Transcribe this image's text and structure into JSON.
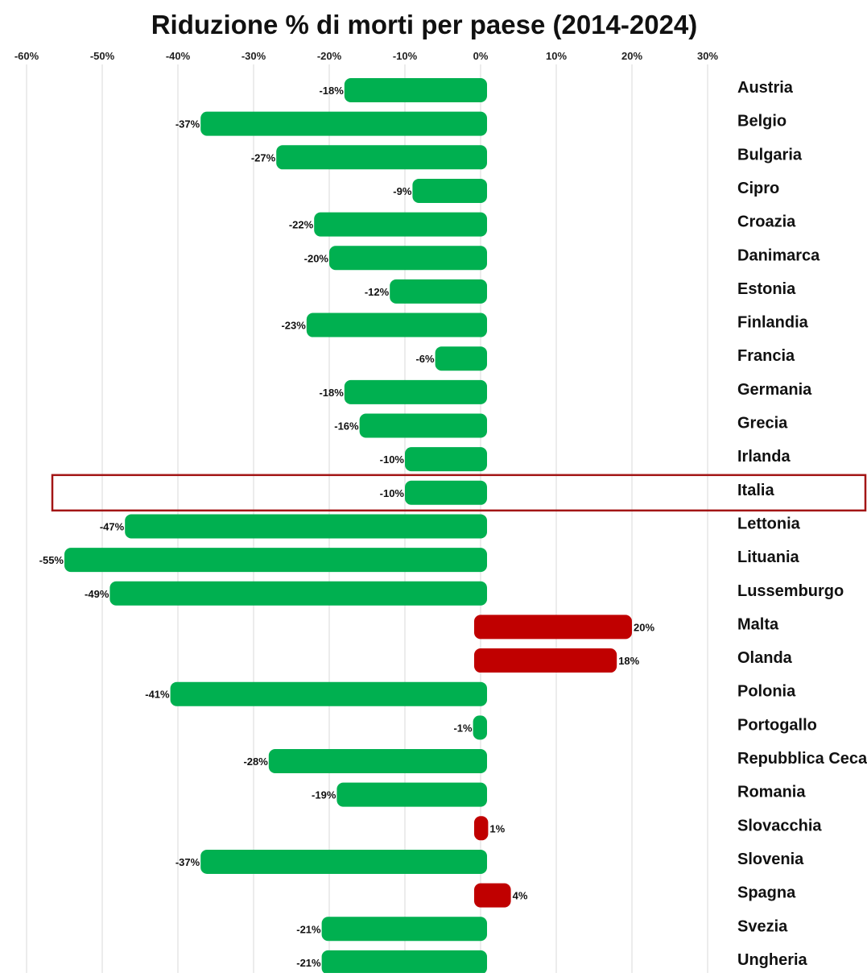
{
  "chart_data": {
    "type": "bar",
    "orientation": "horizontal",
    "title": "Riduzione % di morti per paese (2014-2024)",
    "xlabel": "",
    "ylabel": "",
    "xlim": [
      -60,
      30
    ],
    "x_ticks": [
      -60,
      -50,
      -40,
      -30,
      -20,
      -10,
      0,
      10,
      20,
      30
    ],
    "x_tick_labels": [
      "-60%",
      "-50%",
      "-40%",
      "-30%",
      "-20%",
      "-10%",
      "0%",
      "10%",
      "20%",
      "30%"
    ],
    "grid": true,
    "legend": "none",
    "categories": [
      "Austria",
      "Belgio",
      "Bulgaria",
      "Cipro",
      "Croazia",
      "Danimarca",
      "Estonia",
      "Finlandia",
      "Francia",
      "Germania",
      "Grecia",
      "Irlanda",
      "Italia",
      "Lettonia",
      "Lituania",
      "Lussemburgo",
      "Malta",
      "Olanda",
      "Polonia",
      "Portogallo",
      "Repubblica Ceca",
      "Romania",
      "Slovacchia",
      "Slovenia",
      "Spagna",
      "Svezia",
      "Ungheria"
    ],
    "values": [
      -18,
      -37,
      -27,
      -9,
      -22,
      -20,
      -12,
      -23,
      -6,
      -18,
      -16,
      -10,
      -10,
      -47,
      -55,
      -49,
      20,
      18,
      -41,
      -1,
      -28,
      -19,
      1,
      -37,
      4,
      -21,
      -21
    ],
    "value_labels": [
      "-18%",
      "-37%",
      "-27%",
      "-9%",
      "-22%",
      "-20%",
      "-12%",
      "-23%",
      "-6%",
      "-18%",
      "-16%",
      "-10%",
      "-10%",
      "-47%",
      "-55%",
      "-49%",
      "20%",
      "18%",
      "-41%",
      "-1%",
      "-28%",
      "-19%",
      "1%",
      "-37%",
      "4%",
      "-21%",
      "-21%"
    ],
    "highlighted_category": "Italia",
    "colors": {
      "negative": "#00b050",
      "positive": "#c00000",
      "highlight_border": "#a31515",
      "grid": "#d9d9d9"
    }
  }
}
